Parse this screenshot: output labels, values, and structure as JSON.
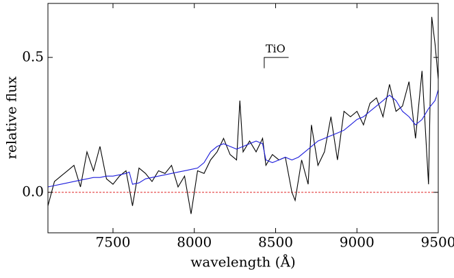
{
  "chart_data": {
    "type": "line",
    "xlabel": "wavelength (Å)",
    "ylabel": "relative flux",
    "xlim": [
      7100,
      9500
    ],
    "ylim": [
      -0.15,
      0.7
    ],
    "xticks": [
      7500,
      8000,
      8500,
      9000,
      9500
    ],
    "yticks": [
      {
        "value": 0,
        "label": "0.0"
      },
      0.5
    ],
    "reference_line": {
      "value": 0,
      "color": "#e02020"
    },
    "annotation": {
      "text": "TiO",
      "x": [
        8430,
        8580
      ],
      "y": [
        0.46,
        0.5
      ]
    },
    "series": [
      {
        "color": "#000000",
        "x": [
          7100,
          7140,
          7180,
          7220,
          7260,
          7300,
          7340,
          7380,
          7420,
          7460,
          7500,
          7540,
          7580,
          7620,
          7660,
          7700,
          7740,
          7780,
          7820,
          7860,
          7900,
          7940,
          7980,
          8020,
          8060,
          8100,
          8140,
          8180,
          8220,
          8260,
          8280,
          8300,
          8340,
          8380,
          8420,
          8440,
          8480,
          8520,
          8560,
          8600,
          8620,
          8660,
          8700,
          8720,
          8760,
          8800,
          8840,
          8880,
          8920,
          8960,
          9000,
          9040,
          9080,
          9120,
          9160,
          9200,
          9240,
          9280,
          9320,
          9360,
          9400,
          9440,
          9460,
          9480,
          9500
        ],
        "values": [
          -0.05,
          0.04,
          0.06,
          0.08,
          0.1,
          0.02,
          0.15,
          0.08,
          0.17,
          0.05,
          0.03,
          0.06,
          0.08,
          -0.05,
          0.09,
          0.07,
          0.04,
          0.08,
          0.07,
          0.1,
          0.02,
          0.06,
          -0.08,
          0.08,
          0.07,
          0.12,
          0.15,
          0.2,
          0.14,
          0.12,
          0.34,
          0.15,
          0.19,
          0.15,
          0.2,
          0.1,
          0.14,
          0.12,
          0.13,
          0.0,
          -0.03,
          0.12,
          0.03,
          0.25,
          0.1,
          0.15,
          0.28,
          0.12,
          0.3,
          0.28,
          0.3,
          0.25,
          0.33,
          0.35,
          0.28,
          0.4,
          0.3,
          0.32,
          0.41,
          0.2,
          0.45,
          0.03,
          0.65,
          0.55,
          0.42
        ]
      },
      {
        "color": "#1a1adc",
        "x": [
          7100,
          7140,
          7180,
          7220,
          7260,
          7300,
          7340,
          7380,
          7420,
          7460,
          7500,
          7540,
          7580,
          7600,
          7620,
          7660,
          7700,
          7740,
          7780,
          7820,
          7860,
          7900,
          7940,
          7980,
          8020,
          8060,
          8100,
          8140,
          8180,
          8220,
          8260,
          8300,
          8340,
          8380,
          8420,
          8440,
          8480,
          8520,
          8560,
          8600,
          8640,
          8680,
          8720,
          8760,
          8800,
          8840,
          8880,
          8920,
          8960,
          9000,
          9040,
          9080,
          9120,
          9160,
          9200,
          9240,
          9280,
          9320,
          9360,
          9400,
          9440,
          9480,
          9500
        ],
        "values": [
          0.02,
          0.025,
          0.03,
          0.035,
          0.04,
          0.045,
          0.05,
          0.055,
          0.055,
          0.06,
          0.06,
          0.065,
          0.07,
          0.075,
          0.03,
          0.035,
          0.05,
          0.055,
          0.06,
          0.065,
          0.07,
          0.075,
          0.08,
          0.085,
          0.09,
          0.11,
          0.15,
          0.17,
          0.18,
          0.17,
          0.16,
          0.17,
          0.18,
          0.19,
          0.18,
          0.12,
          0.11,
          0.12,
          0.13,
          0.12,
          0.13,
          0.15,
          0.17,
          0.19,
          0.2,
          0.21,
          0.22,
          0.23,
          0.25,
          0.27,
          0.28,
          0.3,
          0.32,
          0.34,
          0.36,
          0.34,
          0.3,
          0.28,
          0.25,
          0.27,
          0.31,
          0.34,
          0.38
        ]
      }
    ]
  }
}
